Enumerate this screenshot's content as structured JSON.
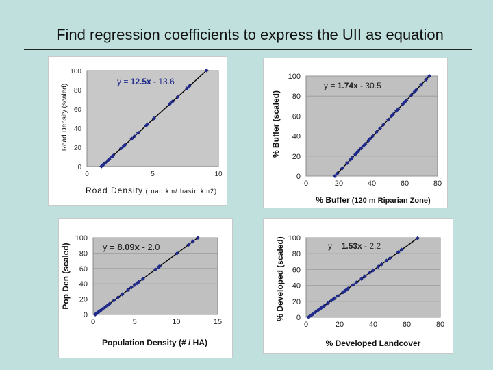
{
  "slide": {
    "title": "Find regression coefficients to express the UII as equation"
  },
  "chart_data": [
    {
      "type": "scatter",
      "title": "",
      "xlabel": "Road Density",
      "xlabel_units": "(road km/ basin km2)",
      "ylabel": "Road Density (scaled)",
      "xlim": [
        0,
        10
      ],
      "ylim": [
        0,
        100
      ],
      "xticks": [
        "0",
        "5",
        "10"
      ],
      "yticks": [
        "0",
        "20",
        "40",
        "60",
        "80",
        "100"
      ],
      "grid": false,
      "equation": {
        "prefix": "y = ",
        "coef": "12.5x",
        "rest": " - 13.6"
      },
      "slope": 12.5,
      "intercept": -13.6,
      "x": [
        1.1,
        1.2,
        1.3,
        1.4,
        1.6,
        1.7,
        1.9,
        2.0,
        2.6,
        2.8,
        2.9,
        3.4,
        3.6,
        3.9,
        4.5,
        4.6,
        5.1,
        6.3,
        6.5,
        6.9,
        7.6,
        7.8,
        9.1
      ],
      "y": [
        0.15,
        1.4,
        2.65,
        3.9,
        6.4,
        7.65,
        10.15,
        11.4,
        18.9,
        21.4,
        22.65,
        28.9,
        31.4,
        35.15,
        42.65,
        43.9,
        50.15,
        65.15,
        67.65,
        72.65,
        81.4,
        83.9,
        100.15
      ]
    },
    {
      "type": "scatter",
      "title": "",
      "xlabel": "% Buffer",
      "xlabel_units": "(120 m Riparian Zone)",
      "ylabel": "% Buffer (scaled)",
      "xlim": [
        0,
        80
      ],
      "ylim": [
        0,
        100
      ],
      "xticks": [
        "0",
        "20",
        "40",
        "60",
        "80"
      ],
      "yticks": [
        "0",
        "20",
        "40",
        "60",
        "80",
        "100"
      ],
      "grid": true,
      "equation": {
        "prefix": "y = ",
        "coef": "1.74x",
        "rest": " - 30.5"
      },
      "slope": 1.74,
      "intercept": -30.5,
      "x": [
        17.5,
        19,
        22,
        25,
        27,
        28,
        30,
        31,
        32,
        33.5,
        35,
        36,
        38,
        39,
        40.5,
        43,
        45,
        47,
        50,
        52,
        53,
        55,
        56,
        59,
        60,
        61,
        64,
        66,
        67,
        70,
        73,
        75
      ],
      "y": [
        0,
        2.6,
        7.8,
        13,
        16.5,
        18.2,
        21.7,
        23.4,
        25.2,
        27.8,
        30.4,
        32.1,
        35.6,
        37.4,
        40,
        44.3,
        47.8,
        51.3,
        56.5,
        60,
        61.7,
        65.2,
        66.9,
        72.2,
        73.9,
        75.6,
        80.9,
        84.3,
        86.1,
        91.3,
        96.5,
        100
      ]
    },
    {
      "type": "scatter",
      "title": "",
      "xlabel": "Population Density (# / HA)",
      "ylabel": "Pop Den (scaled)",
      "xlim": [
        0,
        15
      ],
      "ylim": [
        0,
        100
      ],
      "xticks": [
        "0",
        "5",
        "10",
        "15"
      ],
      "yticks": [
        "0",
        "20",
        "40",
        "60",
        "80",
        "100"
      ],
      "grid": true,
      "equation": {
        "prefix": "y = ",
        "coef": "8.09x",
        "rest": " - 2.0"
      },
      "slope": 8.09,
      "intercept": -2.0,
      "x": [
        0.25,
        0.3,
        0.4,
        0.5,
        0.6,
        0.7,
        0.8,
        1.0,
        1.2,
        1.5,
        1.8,
        2.0,
        2.5,
        3.0,
        3.5,
        4.2,
        4.6,
        5.0,
        5.3,
        5.5,
        6.0,
        7.5,
        7.9,
        8.0,
        10.1,
        11.5,
        12.0,
        12.6
      ],
      "y": [
        0.02,
        0.43,
        1.24,
        2.05,
        2.85,
        3.66,
        4.47,
        6.09,
        7.71,
        10.14,
        12.56,
        14.18,
        18.23,
        22.27,
        26.32,
        31.98,
        35.21,
        38.45,
        40.88,
        42.5,
        46.54,
        58.68,
        61.91,
        62.72,
        79.71,
        91.04,
        95.08,
        99.93
      ]
    },
    {
      "type": "scatter",
      "title": "",
      "xlabel": "% Developed Landcover",
      "ylabel": "% Developed (scaled)",
      "xlim": [
        0,
        80
      ],
      "ylim": [
        0,
        100
      ],
      "xticks": [
        "0",
        "20",
        "40",
        "60",
        "80"
      ],
      "yticks": [
        "0",
        "20",
        "40",
        "60",
        "80",
        "100"
      ],
      "grid": true,
      "equation": {
        "prefix": "y = ",
        "coef": "1.53x",
        "rest": " - 2.2"
      },
      "slope": 1.53,
      "intercept": -2.2,
      "x": [
        1.5,
        2.0,
        3.0,
        4.0,
        5.5,
        7.0,
        8.0,
        9.0,
        10.0,
        11.0,
        13.0,
        15.0,
        16.0,
        17.0,
        19.0,
        22.0,
        23.0,
        24.0,
        25.0,
        28.0,
        30.0,
        33.0,
        35.0,
        38.0,
        40.0,
        43.0,
        45.0,
        48.0,
        50.0,
        55.0,
        57.0,
        66.5
      ],
      "y": [
        0.1,
        0.9,
        2.4,
        3.9,
        6.2,
        8.5,
        10.0,
        11.6,
        13.1,
        14.6,
        17.7,
        20.8,
        22.3,
        23.8,
        26.9,
        31.5,
        33.0,
        34.5,
        36.1,
        40.6,
        43.7,
        48.3,
        51.4,
        56.0,
        59.0,
        63.6,
        66.6,
        71.2,
        74.3,
        81.9,
        85.0,
        99.5
      ]
    }
  ]
}
